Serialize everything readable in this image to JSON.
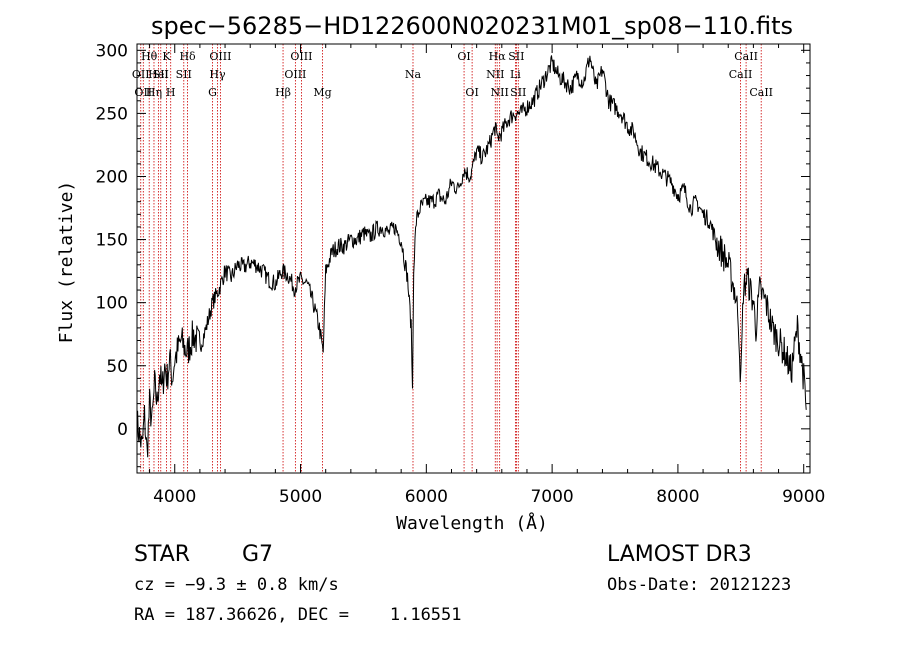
{
  "chart_data": {
    "type": "line",
    "title": "spec−56285−HD122600N020231M01_sp08−110.fits",
    "xlabel": "Wavelength (Å)",
    "ylabel": "Flux (relative)",
    "xlim": [
      3700,
      9050
    ],
    "ylim": [
      -35,
      305
    ],
    "xticks": [
      4000,
      5000,
      6000,
      7000,
      8000,
      9000
    ],
    "yticks": [
      0,
      50,
      100,
      150,
      200,
      250,
      300
    ],
    "grid": false,
    "legend": "none",
    "line_color": "#000000",
    "marker_color": "#cc0000",
    "series": [
      {
        "name": "",
        "x": [
          3700,
          3720,
          3740,
          3760,
          3780,
          3800,
          3820,
          3840,
          3860,
          3880,
          3900,
          3920,
          3940,
          3960,
          3980,
          4000,
          4050,
          4100,
          4150,
          4200,
          4250,
          4300,
          4350,
          4400,
          4450,
          4500,
          4550,
          4600,
          4650,
          4700,
          4750,
          4800,
          4850,
          4900,
          4950,
          5000,
          5050,
          5100,
          5150,
          5180,
          5200,
          5250,
          5300,
          5350,
          5400,
          5450,
          5500,
          5550,
          5600,
          5650,
          5700,
          5750,
          5800,
          5850,
          5880,
          5890,
          5900,
          5920,
          5950,
          6000,
          6050,
          6100,
          6150,
          6200,
          6250,
          6300,
          6350,
          6400,
          6450,
          6500,
          6550,
          6560,
          6600,
          6650,
          6700,
          6750,
          6800,
          6850,
          6900,
          6950,
          7000,
          7050,
          7100,
          7150,
          7200,
          7250,
          7300,
          7350,
          7400,
          7450,
          7500,
          7550,
          7600,
          7650,
          7700,
          7750,
          7800,
          7850,
          7900,
          7950,
          8000,
          8050,
          8100,
          8150,
          8200,
          8250,
          8300,
          8350,
          8400,
          8450,
          8480,
          8500,
          8520,
          8550,
          8600,
          8620,
          8650,
          8700,
          8750,
          8800,
          8850,
          8900,
          8950,
          9000,
          9020
        ],
        "y": [
          5,
          -5,
          -15,
          10,
          -20,
          20,
          5,
          35,
          20,
          45,
          30,
          50,
          40,
          55,
          40,
          55,
          70,
          60,
          75,
          65,
          80,
          100,
          110,
          125,
          120,
          130,
          128,
          132,
          130,
          125,
          118,
          115,
          125,
          122,
          112,
          118,
          115,
          100,
          80,
          60,
          125,
          140,
          145,
          145,
          150,
          150,
          155,
          152,
          158,
          160,
          155,
          160,
          150,
          120,
          80,
          30,
          130,
          165,
          175,
          180,
          180,
          185,
          180,
          195,
          190,
          205,
          200,
          220,
          215,
          225,
          240,
          230,
          235,
          245,
          250,
          250,
          255,
          260,
          270,
          280,
          290,
          280,
          275,
          270,
          280,
          275,
          295,
          270,
          285,
          260,
          255,
          250,
          240,
          235,
          220,
          215,
          210,
          205,
          200,
          195,
          185,
          190,
          175,
          180,
          170,
          165,
          150,
          140,
          130,
          110,
          90,
          35,
          110,
          120,
          100,
          80,
          110,
          100,
          80,
          70,
          60,
          45,
          80,
          40,
          15
        ]
      }
    ],
    "lines": [
      {
        "wavelength": 3730,
        "label": "OII",
        "row": 2
      },
      {
        "wavelength": 3750,
        "label": "OII",
        "row": 3
      },
      {
        "wavelength": 3797,
        "label": "Hθ",
        "row": 1
      },
      {
        "wavelength": 3835,
        "label": "Hη",
        "row": 3
      },
      {
        "wavelength": 3870,
        "label": "HeI",
        "row": 2
      },
      {
        "wavelength": 3889,
        "label": "SII",
        "row": 2
      },
      {
        "wavelength": 3934,
        "label": "K",
        "row": 1
      },
      {
        "wavelength": 3968,
        "label": "H",
        "row": 3
      },
      {
        "wavelength": 4072,
        "label": "SII",
        "row": 2
      },
      {
        "wavelength": 4102,
        "label": "Hδ",
        "row": 1
      },
      {
        "wavelength": 4300,
        "label": "G",
        "row": 3
      },
      {
        "wavelength": 4340,
        "label": "Hγ",
        "row": 2
      },
      {
        "wavelength": 4363,
        "label": "OIII",
        "row": 1
      },
      {
        "wavelength": 4861,
        "label": "Hβ",
        "row": 3
      },
      {
        "wavelength": 4959,
        "label": "OIII",
        "row": 2
      },
      {
        "wavelength": 5007,
        "label": "OIII",
        "row": 1
      },
      {
        "wavelength": 5175,
        "label": "Mg",
        "row": 3
      },
      {
        "wavelength": 5894,
        "label": "Na",
        "row": 2
      },
      {
        "wavelength": 6300,
        "label": "OI",
        "row": 1
      },
      {
        "wavelength": 6364,
        "label": "OI",
        "row": 3
      },
      {
        "wavelength": 6548,
        "label": "NII",
        "row": 2
      },
      {
        "wavelength": 6563,
        "label": "Hα",
        "row": 1
      },
      {
        "wavelength": 6583,
        "label": "NII",
        "row": 3
      },
      {
        "wavelength": 6708,
        "label": "Li",
        "row": 2
      },
      {
        "wavelength": 6716,
        "label": "SII",
        "row": 1
      },
      {
        "wavelength": 6731,
        "label": "SII",
        "row": 3
      },
      {
        "wavelength": 8498,
        "label": "CaII",
        "row": 2
      },
      {
        "wavelength": 8542,
        "label": "CaII",
        "row": 1
      },
      {
        "wavelength": 8662,
        "label": "CaII",
        "row": 3
      }
    ]
  },
  "info": {
    "class_label": "STAR",
    "subclass": "G7",
    "survey": "LAMOST DR3",
    "cz": "cz = −9.3 ± 0.8 km/s",
    "obs_date": "Obs-Date: 20121223",
    "coords": "RA = 187.36626, DEC =    1.16551"
  }
}
